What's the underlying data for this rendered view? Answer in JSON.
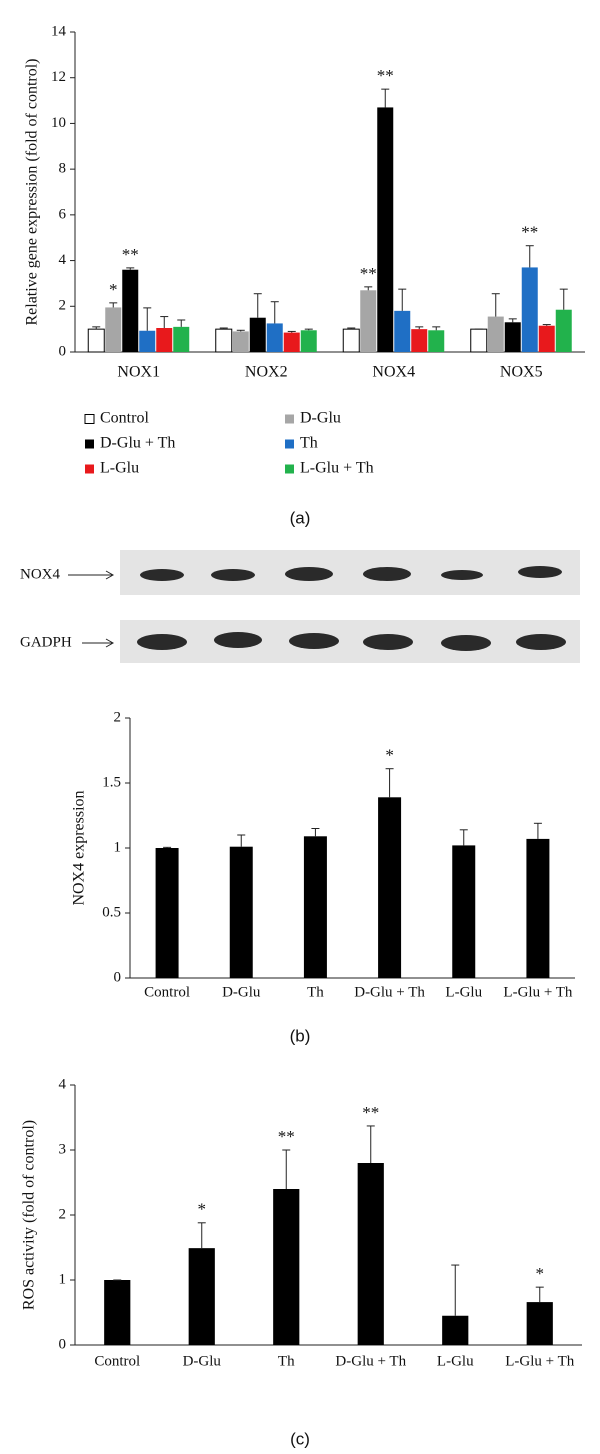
{
  "chart_data": [
    {
      "type": "grouped_bar",
      "caption": "(a)",
      "ylabel": "Relative gene expression (fold of control)",
      "categories": [
        "NOX1",
        "NOX2",
        "NOX4",
        "NOX5"
      ],
      "series": [
        {
          "name": "Control",
          "color": "#ffffff",
          "values": [
            1.0,
            1.0,
            1.0,
            1.0
          ],
          "errors": [
            0.1,
            0.05,
            0.05,
            0.0
          ],
          "annotations": [
            null,
            null,
            null,
            null
          ]
        },
        {
          "name": "D-Glu",
          "color": "#a6a6a6",
          "values": [
            1.95,
            0.9,
            2.7,
            1.55
          ],
          "errors": [
            0.2,
            0.05,
            0.15,
            1.0
          ],
          "annotations": [
            "*",
            null,
            "**",
            null
          ]
        },
        {
          "name": "D-Glu + Th",
          "color": "#000000",
          "values": [
            3.6,
            1.5,
            10.7,
            1.3
          ],
          "errors": [
            0.08,
            1.05,
            0.8,
            0.15
          ],
          "annotations": [
            "**",
            null,
            "**",
            null
          ]
        },
        {
          "name": "Th",
          "color": "#1f6fc5",
          "values": [
            0.93,
            1.25,
            1.8,
            3.7
          ],
          "errors": [
            1.0,
            0.95,
            0.95,
            0.95
          ],
          "annotations": [
            null,
            null,
            null,
            "**"
          ]
        },
        {
          "name": "L-Glu",
          "color": "#e8191c",
          "values": [
            1.05,
            0.85,
            1.0,
            1.15
          ],
          "errors": [
            0.5,
            0.05,
            0.1,
            0.05
          ],
          "annotations": [
            null,
            null,
            null,
            null
          ]
        },
        {
          "name": "L-Glu + Th",
          "color": "#22b24c",
          "values": [
            1.1,
            0.95,
            0.95,
            1.85
          ],
          "errors": [
            0.3,
            0.05,
            0.15,
            0.9
          ],
          "annotations": [
            null,
            null,
            null,
            null
          ]
        }
      ],
      "ylim": [
        0,
        14
      ],
      "yticks": [
        0,
        2,
        4,
        6,
        8,
        10,
        12,
        14
      ],
      "legend": "bottom"
    },
    {
      "type": "bar",
      "caption": "(b)",
      "ylabel": "NOX4 expression",
      "blot_labels": [
        "NOX4",
        "GADPH"
      ],
      "categories": [
        "Control",
        "D-Glu",
        "Th",
        "D-Glu + Th",
        "L-Glu",
        "L-Glu + Th"
      ],
      "values": [
        1.0,
        1.01,
        1.09,
        1.39,
        1.02,
        1.07
      ],
      "errors": [
        0.005,
        0.09,
        0.06,
        0.22,
        0.12,
        0.12
      ],
      "annotations": [
        null,
        null,
        null,
        "*",
        null,
        null
      ],
      "color": "#000000",
      "ylim": [
        0,
        2
      ],
      "yticks": [
        0,
        0.5,
        1,
        1.5,
        2
      ]
    },
    {
      "type": "bar",
      "caption": "(c)",
      "ylabel": "ROS activity (fold of control)",
      "categories": [
        "Control",
        "D-Glu",
        "Th",
        "D-Glu + Th",
        "L-Glu",
        "L-Glu + Th"
      ],
      "values": [
        1.0,
        1.49,
        2.4,
        2.8,
        0.45,
        0.66
      ],
      "errors": [
        0.0,
        0.39,
        0.6,
        0.57,
        0.78,
        0.23
      ],
      "annotations": [
        null,
        "*",
        "**",
        "**",
        null,
        "*"
      ],
      "color": "#000000",
      "ylim": [
        0,
        4
      ],
      "yticks": [
        0,
        1,
        2,
        3,
        4
      ]
    }
  ]
}
